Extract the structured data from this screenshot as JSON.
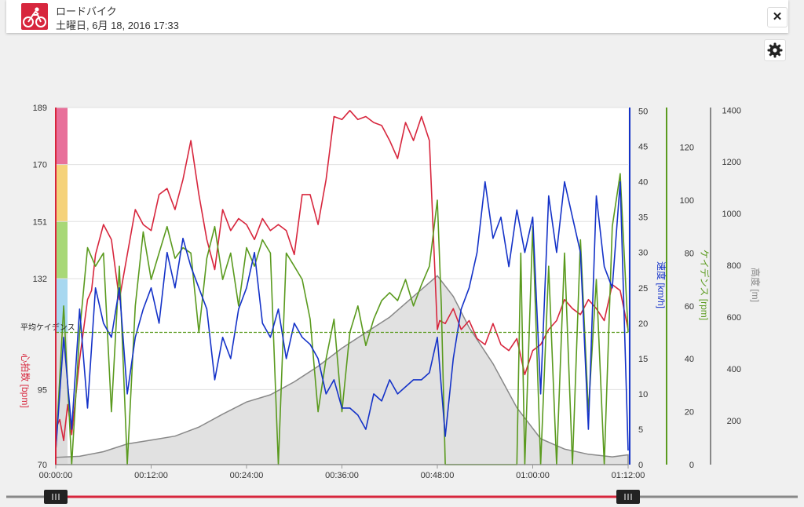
{
  "header": {
    "title": "ロードバイク",
    "subtitle": "土曜日, 6月 18, 2016 17:33",
    "activity_icon": "cycling-icon",
    "close_label": "✕"
  },
  "toolbar": {
    "settings_icon": "gear-icon"
  },
  "colors": {
    "heart_rate": "#d7263d",
    "speed": "#1432c8",
    "cadence": "#5a9a1e",
    "altitude": "#888888",
    "zone_5": "#e8709a",
    "zone_4": "#f5d27a",
    "zone_3": "#a8d877",
    "zone_2": "#a8d8f0",
    "zone_1": "#dddddd"
  },
  "chart_data": {
    "type": "line",
    "x_unit": "time",
    "x_tick_labels": [
      "00:00:00",
      "00:12:00",
      "00:24:00",
      "00:36:00",
      "00:48:00",
      "01:00:00",
      "01:12:00"
    ],
    "xlim": [
      "00:00:00",
      "01:12:00"
    ],
    "average_cadence_label": "平均ケイデンス",
    "axes": {
      "heart_rate": {
        "label": "心拍数 [bpm]",
        "ticks": [
          70,
          95,
          132,
          151,
          170,
          189
        ],
        "ylim": [
          70,
          189
        ]
      },
      "speed": {
        "label": "速度 [km/h]",
        "ticks": [
          0,
          5,
          10,
          15,
          20,
          25,
          30,
          35,
          40,
          45,
          50
        ],
        "ylim": [
          0,
          50.5
        ]
      },
      "cadence": {
        "label": "ケイデンス [rpm]",
        "ticks": [
          0,
          20,
          40,
          60,
          80,
          100,
          120
        ],
        "ylim": [
          0,
          135
        ]
      },
      "altitude": {
        "label": "高度 [m]",
        "ticks": [
          200,
          400,
          600,
          800,
          1000,
          1200,
          1400
        ],
        "ylim": [
          30,
          1410
        ]
      }
    },
    "zones": [
      {
        "from": 70,
        "to": 114,
        "color_key": "zone_1"
      },
      {
        "from": 114,
        "to": 132,
        "color_key": "zone_2"
      },
      {
        "from": 132,
        "to": 151,
        "color_key": "zone_3"
      },
      {
        "from": 151,
        "to": 170,
        "color_key": "zone_4"
      },
      {
        "from": 170,
        "to": 189,
        "color_key": "zone_5"
      }
    ],
    "average_cadence": 50,
    "series": [
      {
        "name": "心拍数",
        "axis": "heart_rate",
        "minutes": [
          0,
          0.5,
          1,
          1.5,
          2,
          3,
          4,
          4.5,
          5,
          6,
          7,
          8,
          9,
          10,
          11,
          12,
          13,
          14,
          15,
          16,
          17,
          18,
          19,
          20,
          21,
          22,
          23,
          24,
          25,
          26,
          27,
          28,
          29,
          30,
          31,
          32,
          33,
          34,
          35,
          36,
          37,
          38,
          39,
          40,
          41,
          42,
          43,
          44,
          45,
          46,
          47,
          48,
          48.3,
          49,
          50,
          51,
          52,
          53,
          54,
          55,
          56,
          57,
          58,
          59,
          60,
          61,
          62,
          63,
          64,
          65,
          66,
          67,
          68,
          69,
          70,
          71,
          72
        ],
        "values": [
          82,
          85,
          78,
          90,
          80,
          105,
          125,
          128,
          140,
          150,
          145,
          125,
          140,
          155,
          150,
          148,
          160,
          162,
          155,
          165,
          178,
          160,
          145,
          135,
          155,
          148,
          152,
          150,
          145,
          152,
          148,
          150,
          148,
          140,
          160,
          160,
          150,
          165,
          186,
          185,
          188,
          185,
          186,
          184,
          183,
          178,
          172,
          184,
          178,
          186,
          178,
          115,
          118,
          117,
          122,
          115,
          118,
          112,
          110,
          117,
          110,
          108,
          112,
          100,
          108,
          110,
          115,
          118,
          125,
          122,
          120,
          125,
          122,
          118,
          130,
          128,
          115
        ]
      },
      {
        "name": "速度",
        "axis": "speed",
        "minutes": [
          0,
          1,
          2,
          3,
          4,
          5,
          6,
          7,
          8,
          9,
          10,
          11,
          12,
          13,
          14,
          15,
          16,
          17,
          18,
          19,
          20,
          21,
          22,
          23,
          24,
          25,
          26,
          27,
          28,
          29,
          30,
          31,
          32,
          33,
          34,
          35,
          36,
          37,
          38,
          39,
          40,
          41,
          42,
          43,
          44,
          45,
          46,
          47,
          48,
          49,
          50,
          51,
          52,
          53,
          54,
          55,
          56,
          57,
          58,
          59,
          60,
          61,
          62,
          63,
          64,
          65,
          66,
          67,
          68,
          69,
          70,
          71,
          72
        ],
        "values": [
          2,
          18,
          5,
          22,
          8,
          25,
          20,
          18,
          25,
          10,
          18,
          22,
          25,
          20,
          30,
          25,
          32,
          28,
          25,
          22,
          12,
          18,
          15,
          22,
          25,
          30,
          20,
          18,
          22,
          15,
          20,
          18,
          17,
          15,
          10,
          12,
          8,
          8,
          7,
          5,
          10,
          9,
          12,
          10,
          11,
          12,
          12,
          13,
          18,
          4,
          15,
          22,
          25,
          30,
          40,
          32,
          35,
          28,
          36,
          30,
          35,
          10,
          38,
          30,
          40,
          35,
          30,
          5,
          38,
          28,
          25,
          40,
          2
        ]
      },
      {
        "name": "ケイデンス",
        "axis": "cadence",
        "minutes": [
          0,
          1,
          2,
          3,
          4,
          5,
          6,
          7,
          8,
          9,
          10,
          11,
          12,
          13,
          14,
          15,
          16,
          17,
          18,
          19,
          20,
          21,
          22,
          23,
          24,
          25,
          26,
          27,
          28,
          29,
          30,
          31,
          32,
          33,
          34,
          35,
          36,
          37,
          38,
          39,
          40,
          41,
          42,
          43,
          44,
          45,
          46,
          47,
          48,
          48.5,
          49,
          58,
          58.5,
          59,
          60,
          61,
          62,
          63,
          64,
          65,
          66,
          67,
          68,
          69,
          70,
          71,
          72
        ],
        "values": [
          5,
          60,
          0,
          50,
          82,
          75,
          80,
          20,
          75,
          0,
          60,
          88,
          70,
          80,
          90,
          78,
          82,
          80,
          50,
          78,
          90,
          70,
          80,
          60,
          82,
          75,
          85,
          80,
          0,
          80,
          75,
          70,
          55,
          20,
          40,
          55,
          20,
          50,
          60,
          45,
          55,
          62,
          65,
          62,
          70,
          60,
          68,
          75,
          100,
          60,
          0,
          0,
          80,
          0,
          90,
          0,
          75,
          0,
          80,
          0,
          85,
          20,
          70,
          0,
          90,
          110,
          50
        ]
      },
      {
        "name": "高度",
        "axis": "altitude",
        "minutes": [
          0,
          3,
          6,
          9,
          12,
          15,
          18,
          21,
          24,
          27,
          30,
          33,
          36,
          39,
          42,
          45,
          48,
          50,
          52,
          55,
          58,
          61,
          64,
          67,
          70,
          72
        ],
        "values": [
          58,
          62,
          80,
          110,
          125,
          140,
          175,
          225,
          272,
          300,
          350,
          410,
          480,
          540,
          600,
          680,
          760,
          680,
          560,
          420,
          250,
          130,
          90,
          70,
          60,
          68
        ]
      }
    ]
  },
  "slider": {
    "left_handle_icon": "grip-icon",
    "right_handle_icon": "grip-icon"
  }
}
